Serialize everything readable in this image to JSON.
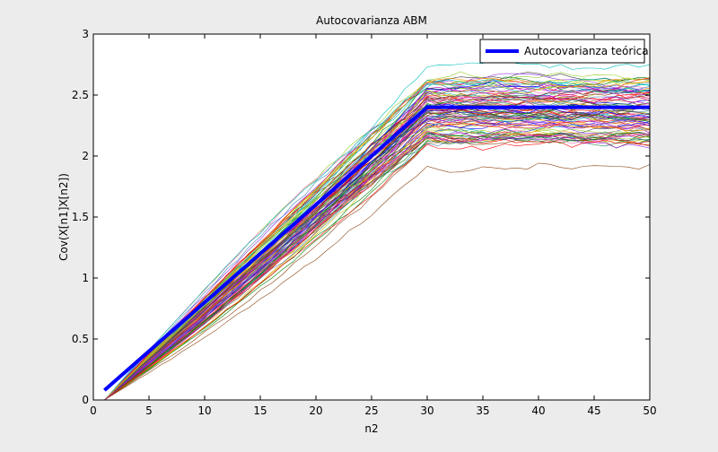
{
  "chart_data": {
    "type": "line",
    "title": "Autocovarianza ABM",
    "xlabel": "n2",
    "ylabel": "Cov(X[n1]X[n2])",
    "xlim": [
      0,
      50
    ],
    "ylim": [
      0,
      3
    ],
    "xticks": [
      0,
      5,
      10,
      15,
      20,
      25,
      30,
      35,
      40,
      45,
      50
    ],
    "yticks": [
      0,
      0.5,
      1,
      1.5,
      2,
      2.5,
      3
    ],
    "xtick_labels": [
      "0",
      "5",
      "10",
      "15",
      "20",
      "25",
      "30",
      "35",
      "40",
      "45",
      "50"
    ],
    "ytick_labels": [
      "0",
      "0.5",
      "1",
      "1.5",
      "2",
      "2.5",
      "3"
    ],
    "grid": false,
    "legend_position": "top-right",
    "theoretical": {
      "name": "Autocovarianza teórica",
      "color": "#0000ff",
      "x": [
        1,
        30,
        50
      ],
      "y": [
        0.08,
        2.4,
        2.4
      ]
    },
    "simulations": {
      "count": 100,
      "x_range": [
        1,
        50
      ],
      "peak_at": 30,
      "plateau_spread": [
        1.8,
        2.8
      ],
      "colors": [
        "#0000ff",
        "#008000",
        "#ff0000",
        "#00bfbf",
        "#bf00bf",
        "#bfbf00",
        "#404040",
        "#8b4513",
        "#ff8c00",
        "#8a2be2",
        "#2e8b57",
        "#dc143c",
        "#4682b4",
        "#9acd32",
        "#ff69b4"
      ]
    }
  }
}
